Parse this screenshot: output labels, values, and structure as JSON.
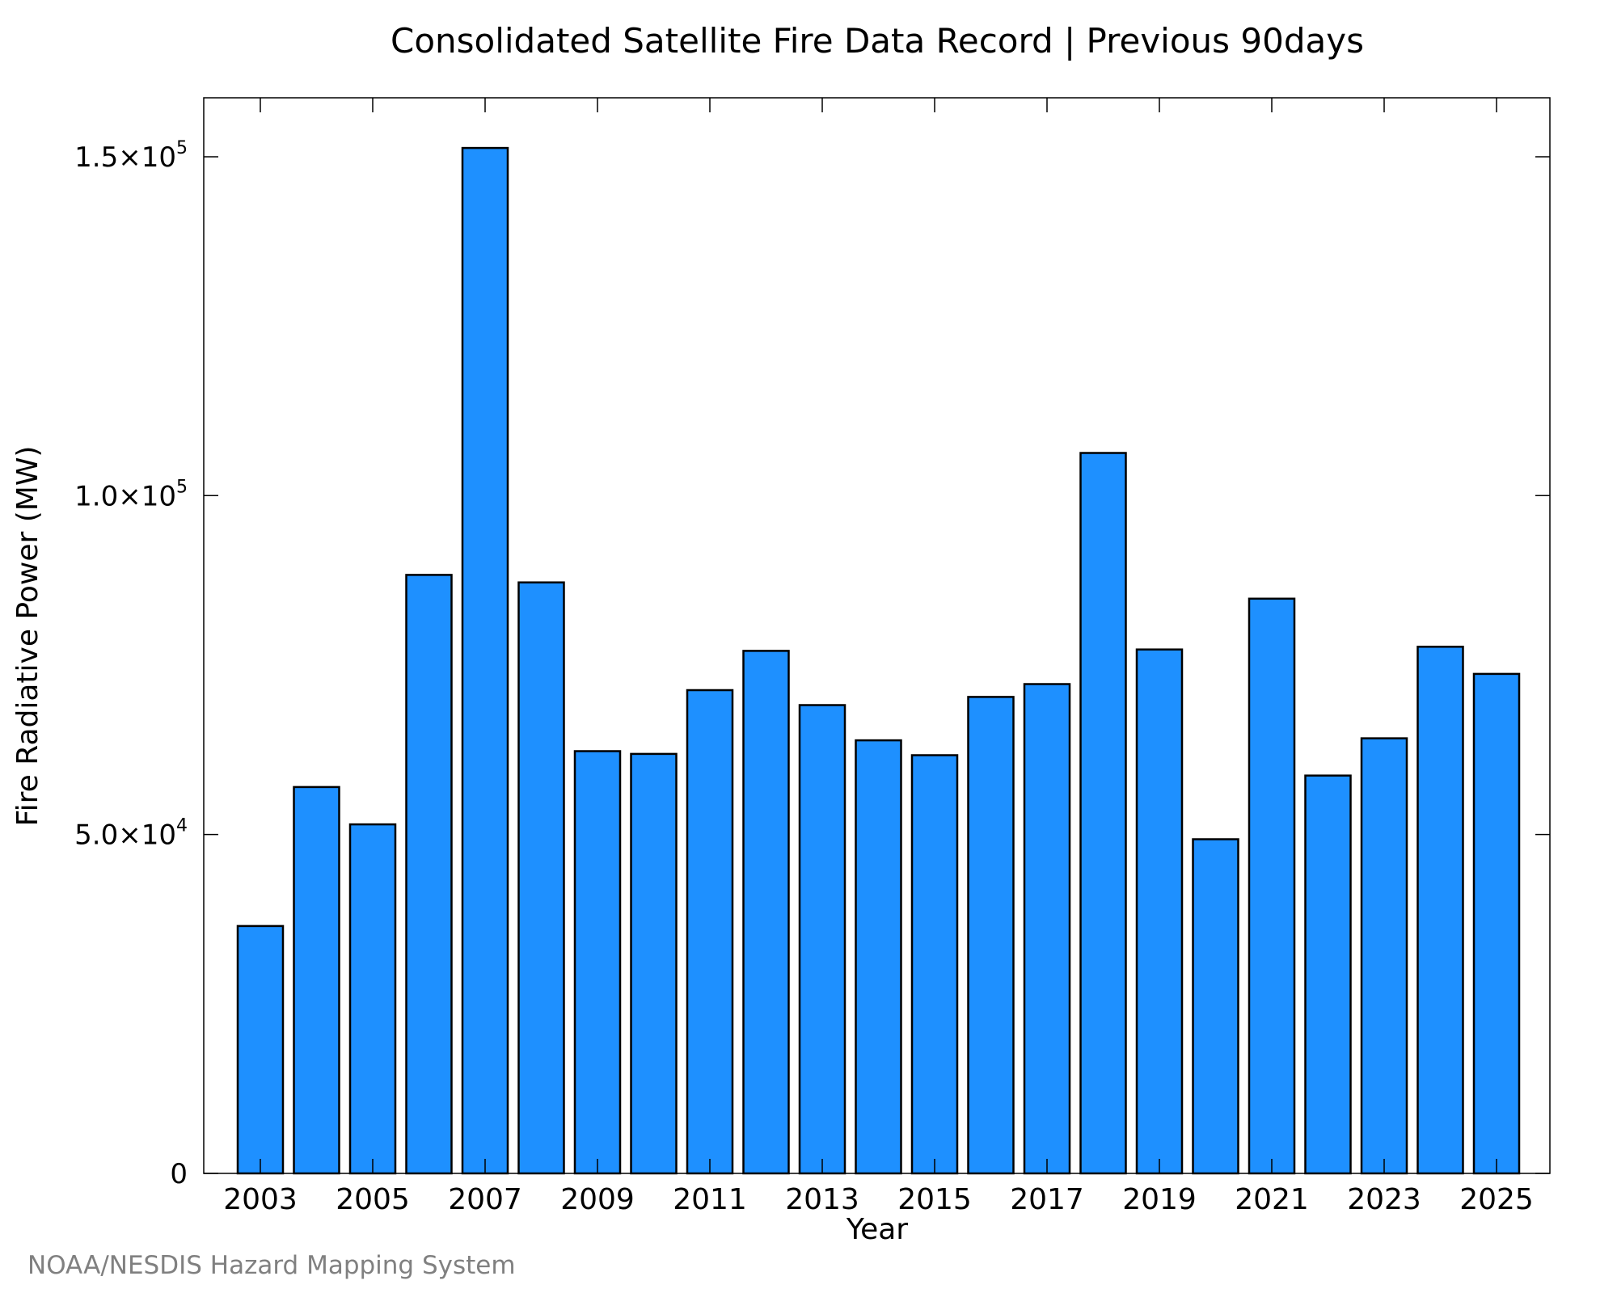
{
  "chart_data": {
    "type": "bar",
    "title": "Consolidated Satellite Fire Data Record | Previous 90days",
    "xlabel": "Year",
    "ylabel": "Fire Radiative Power (MW)",
    "credit": "NOAA/NESDIS Hazard Mapping System",
    "bar_color": "#1E90FF",
    "edge_color": "#000000",
    "ylim": [
      0,
      158700
    ],
    "yticks": [
      {
        "value": 0,
        "mantissa": "0",
        "exponent": ""
      },
      {
        "value": 50000,
        "mantissa": "5.0×10",
        "exponent": "4"
      },
      {
        "value": 100000,
        "mantissa": "1.0×10",
        "exponent": "5"
      },
      {
        "value": 150000,
        "mantissa": "1.5×10",
        "exponent": "5"
      }
    ],
    "xlabel_years": [
      "2003",
      "2005",
      "2007",
      "2009",
      "2011",
      "2013",
      "2015",
      "2017",
      "2019",
      "2021",
      "2023",
      "2025"
    ],
    "categories": [
      "2003",
      "2004",
      "2005",
      "2006",
      "2007",
      "2008",
      "2009",
      "2010",
      "2011",
      "2012",
      "2013",
      "2014",
      "2015",
      "2016",
      "2017",
      "2018",
      "2019",
      "2020",
      "2021",
      "2022",
      "2023",
      "2024",
      "2025"
    ],
    "values": [
      36500,
      57000,
      51500,
      88300,
      151300,
      87200,
      62300,
      61900,
      71300,
      77100,
      69100,
      63900,
      61700,
      70300,
      72200,
      106300,
      77300,
      49300,
      84800,
      58700,
      64200,
      77700,
      73700
    ],
    "grid": false,
    "legend": "none"
  }
}
